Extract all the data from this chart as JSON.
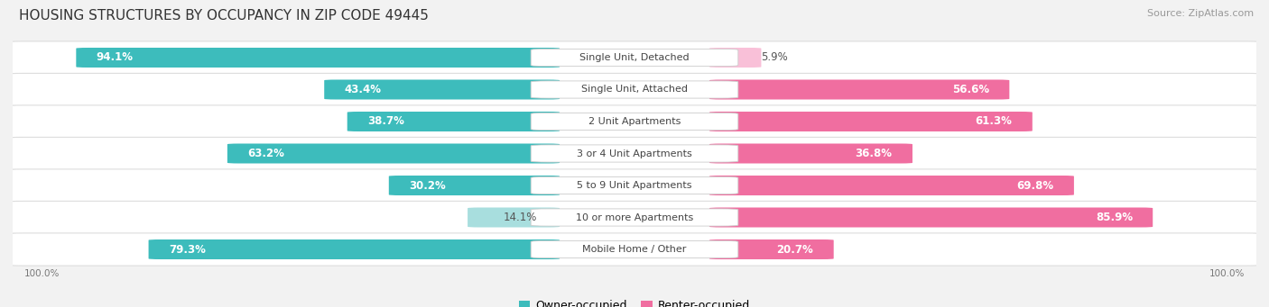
{
  "title": "HOUSING STRUCTURES BY OCCUPANCY IN ZIP CODE 49445",
  "source": "Source: ZipAtlas.com",
  "categories": [
    "Single Unit, Detached",
    "Single Unit, Attached",
    "2 Unit Apartments",
    "3 or 4 Unit Apartments",
    "5 to 9 Unit Apartments",
    "10 or more Apartments",
    "Mobile Home / Other"
  ],
  "owner_pct": [
    94.1,
    43.4,
    38.7,
    63.2,
    30.2,
    14.1,
    79.3
  ],
  "renter_pct": [
    5.9,
    56.6,
    61.3,
    36.8,
    69.8,
    85.9,
    20.7
  ],
  "owner_color": "#3DBCBC",
  "renter_color": "#F06EA0",
  "renter_color_light": "#F9C0D8",
  "owner_color_light": "#A8DEDE",
  "bg_color": "#F2F2F2",
  "row_bg_even": "#FFFFFF",
  "row_bg_odd": "#F7F7F7",
  "title_fontsize": 11,
  "label_fontsize": 8.5,
  "pct_fontsize": 8.5,
  "legend_fontsize": 9,
  "source_fontsize": 8,
  "inside_label_threshold": 15
}
